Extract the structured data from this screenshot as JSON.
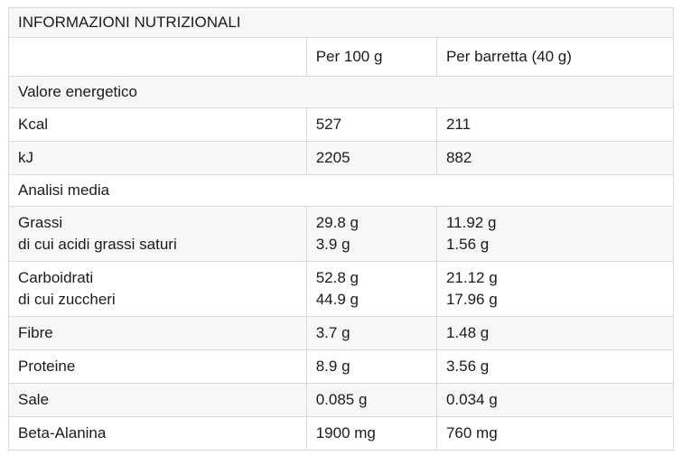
{
  "table": {
    "title": "INFORMAZIONI NUTRIZIONALI",
    "columns": [
      "",
      "Per 100 g",
      "Per barretta (40 g)"
    ],
    "rows": [
      {
        "type": "section",
        "label": "Valore energetico"
      },
      {
        "type": "data",
        "label": "Kcal",
        "per_100g": "527",
        "per_barretta": "211"
      },
      {
        "type": "data",
        "label": "kJ",
        "per_100g": "2205",
        "per_barretta": "882"
      },
      {
        "type": "section",
        "label": "Analisi media"
      },
      {
        "type": "data",
        "label": [
          "Grassi",
          "di cui acidi grassi saturi"
        ],
        "per_100g": [
          "29.8 g",
          "3.9 g"
        ],
        "per_barretta": [
          "11.92 g",
          "1.56 g"
        ]
      },
      {
        "type": "data",
        "label": [
          "Carboidrati",
          "di cui zuccheri"
        ],
        "per_100g": [
          "52.8 g",
          "44.9 g"
        ],
        "per_barretta": [
          "21.12 g",
          "17.96 g"
        ]
      },
      {
        "type": "data",
        "label": "Fibre",
        "per_100g": "3.7 g",
        "per_barretta": "1.48 g"
      },
      {
        "type": "data",
        "label": "Proteine",
        "per_100g": "8.9 g",
        "per_barretta": "3.56 g"
      },
      {
        "type": "data",
        "label": "Sale",
        "per_100g": "0.085 g",
        "per_barretta": "0.034 g"
      },
      {
        "type": "data",
        "label": "Beta-Alanina",
        "per_100g": "1900 mg",
        "per_barretta": "760 mg"
      }
    ]
  },
  "colors": {
    "row_shade": "#f7f7f7",
    "border": "#d9d9d9",
    "text": "#1b1b1b",
    "background": "#ffffff"
  }
}
